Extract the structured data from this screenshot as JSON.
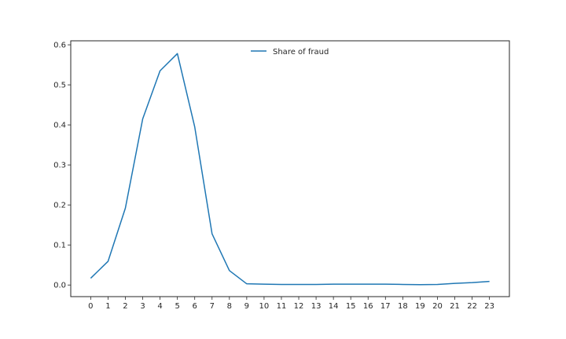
{
  "chart_data": {
    "type": "line",
    "title": "",
    "xlabel": "",
    "ylabel": "",
    "x": [
      0,
      1,
      2,
      3,
      4,
      5,
      6,
      7,
      8,
      9,
      10,
      11,
      12,
      13,
      14,
      15,
      16,
      17,
      18,
      19,
      20,
      21,
      22,
      23
    ],
    "xlim": [
      -1.15,
      24.15
    ],
    "ylim": [
      -0.029,
      0.61
    ],
    "yticks": [
      "0.0",
      "0.1",
      "0.2",
      "0.3",
      "0.4",
      "0.5",
      "0.6"
    ],
    "ytick_values": [
      0.0,
      0.1,
      0.2,
      0.3,
      0.4,
      0.5,
      0.6
    ],
    "grid": false,
    "legend": {
      "position": "upper-center"
    },
    "series": [
      {
        "name": "Share of fraud",
        "color": "#1f77b4",
        "values": [
          0.017,
          0.059,
          0.192,
          0.415,
          0.535,
          0.578,
          0.395,
          0.128,
          0.036,
          0.003,
          0.002,
          0.0015,
          0.0015,
          0.0015,
          0.002,
          0.002,
          0.002,
          0.002,
          0.0015,
          0.001,
          0.0015,
          0.004,
          0.006,
          0.009
        ]
      }
    ]
  }
}
